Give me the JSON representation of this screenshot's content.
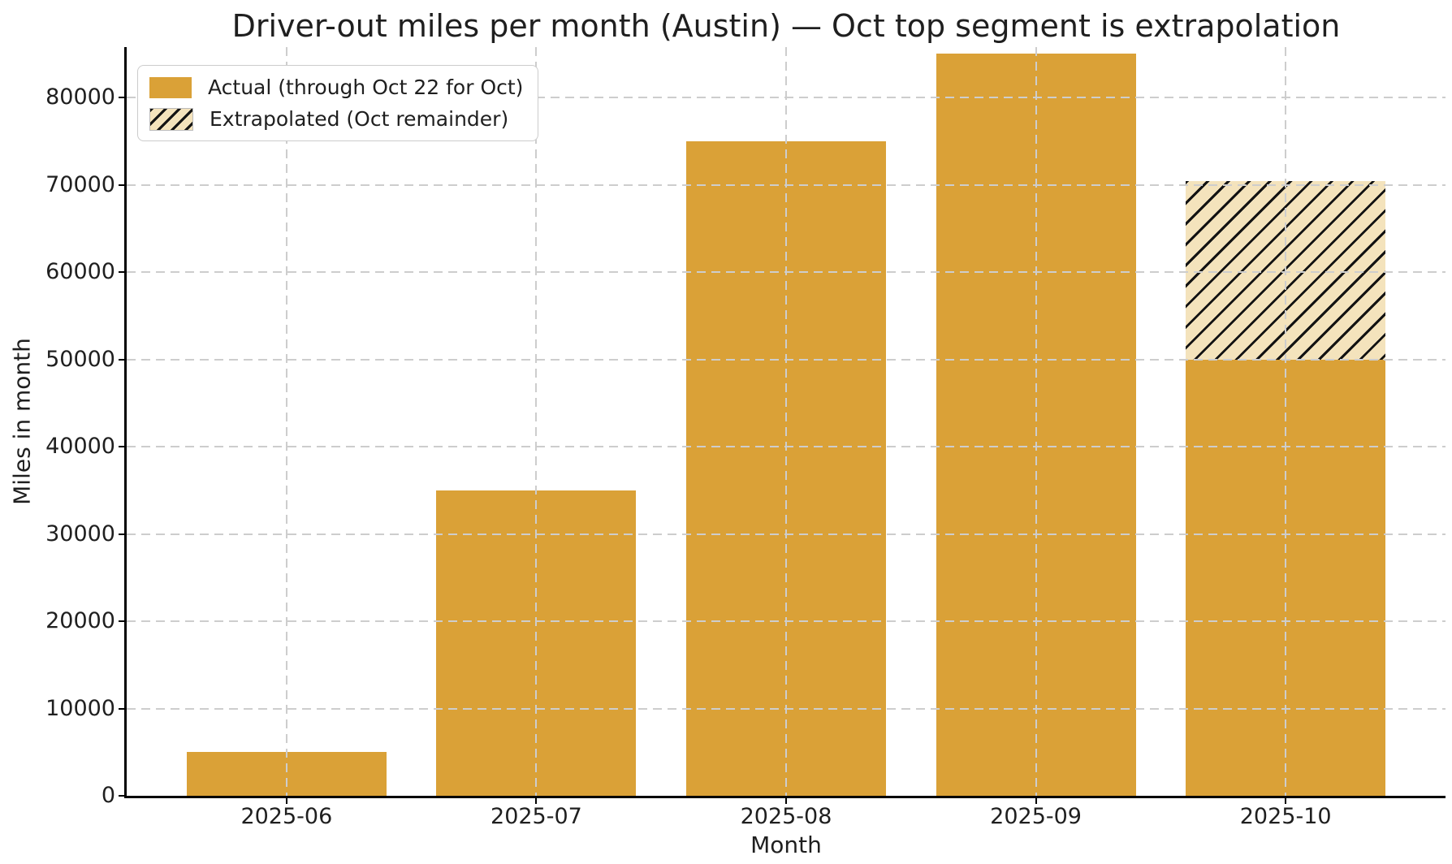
{
  "chart_data": {
    "type": "bar",
    "stacked": true,
    "title": "Driver-out miles per month (Austin) — Oct top segment is extrapolation",
    "xlabel": "Month",
    "ylabel": "Miles in month",
    "categories": [
      "2025-06",
      "2025-07",
      "2025-08",
      "2025-09",
      "2025-10"
    ],
    "series": [
      {
        "name": "Actual (through Oct 22 for Oct)",
        "values": [
          5000,
          35000,
          75000,
          85000,
          50000
        ],
        "color": "#DAA137",
        "pattern": "solid"
      },
      {
        "name": "Extrapolated (Oct remainder)",
        "values": [
          0,
          0,
          0,
          0,
          20455
        ],
        "color": "#F4E3BC",
        "pattern": "diagonal-hatch",
        "hatch_color": "#131313"
      }
    ],
    "ylim": [
      0,
      85770
    ],
    "yticks": [
      0,
      10000,
      20000,
      30000,
      40000,
      50000,
      60000,
      70000,
      80000
    ],
    "grid": "dashed",
    "legend_position": "upper-left"
  },
  "style": {
    "bar_color": "#DAA137",
    "hatch_face_color": "#F4E3BC",
    "hatch_line_color": "#131313",
    "grid_color": "#cdcdcd",
    "axis_color": "#000000",
    "text_color": "#1f1f1f",
    "background_color": "#ffffff"
  }
}
